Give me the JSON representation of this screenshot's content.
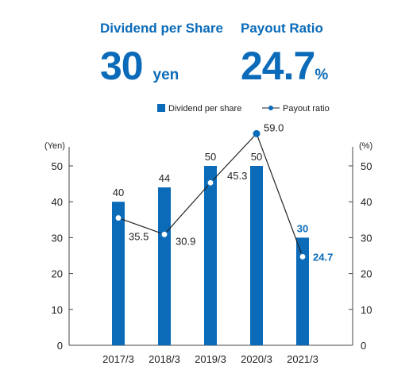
{
  "headline": {
    "dividend": {
      "label": "Dividend per Share",
      "value": "30",
      "unit": "yen"
    },
    "payout": {
      "label": "Payout Ratio",
      "value": "24.7",
      "unit": "%"
    }
  },
  "chart_data": {
    "type": "bar",
    "categories": [
      "2017/3",
      "2018/3",
      "2019/3",
      "2020/3",
      "2021/3"
    ],
    "series": [
      {
        "name": "Dividend per share",
        "kind": "bar",
        "axis": "left",
        "values": [
          40,
          44,
          50,
          50,
          30
        ]
      },
      {
        "name": "Payout ratio",
        "kind": "line",
        "axis": "right",
        "values": [
          35.5,
          30.9,
          45.3,
          59.0,
          24.7
        ]
      }
    ],
    "value_labels": {
      "bars": [
        "40",
        "44",
        "50",
        "50",
        "30"
      ],
      "line": [
        "35.5",
        "30.9",
        "45.3",
        "59.0",
        "24.7"
      ]
    },
    "ylabel": "(Yen)",
    "y2label": "(%)",
    "ylim": [
      0,
      50
    ],
    "y2lim": [
      0,
      50
    ],
    "yticks": [
      "0",
      "10",
      "20",
      "30",
      "40",
      "50"
    ],
    "legend_position": "top",
    "colors": {
      "bar": "#0b6bb8",
      "line": "#222222",
      "marker": "#0b6bb8",
      "highlight": "#0b6bb8",
      "text": "#222222"
    },
    "highlight_index": 4
  }
}
